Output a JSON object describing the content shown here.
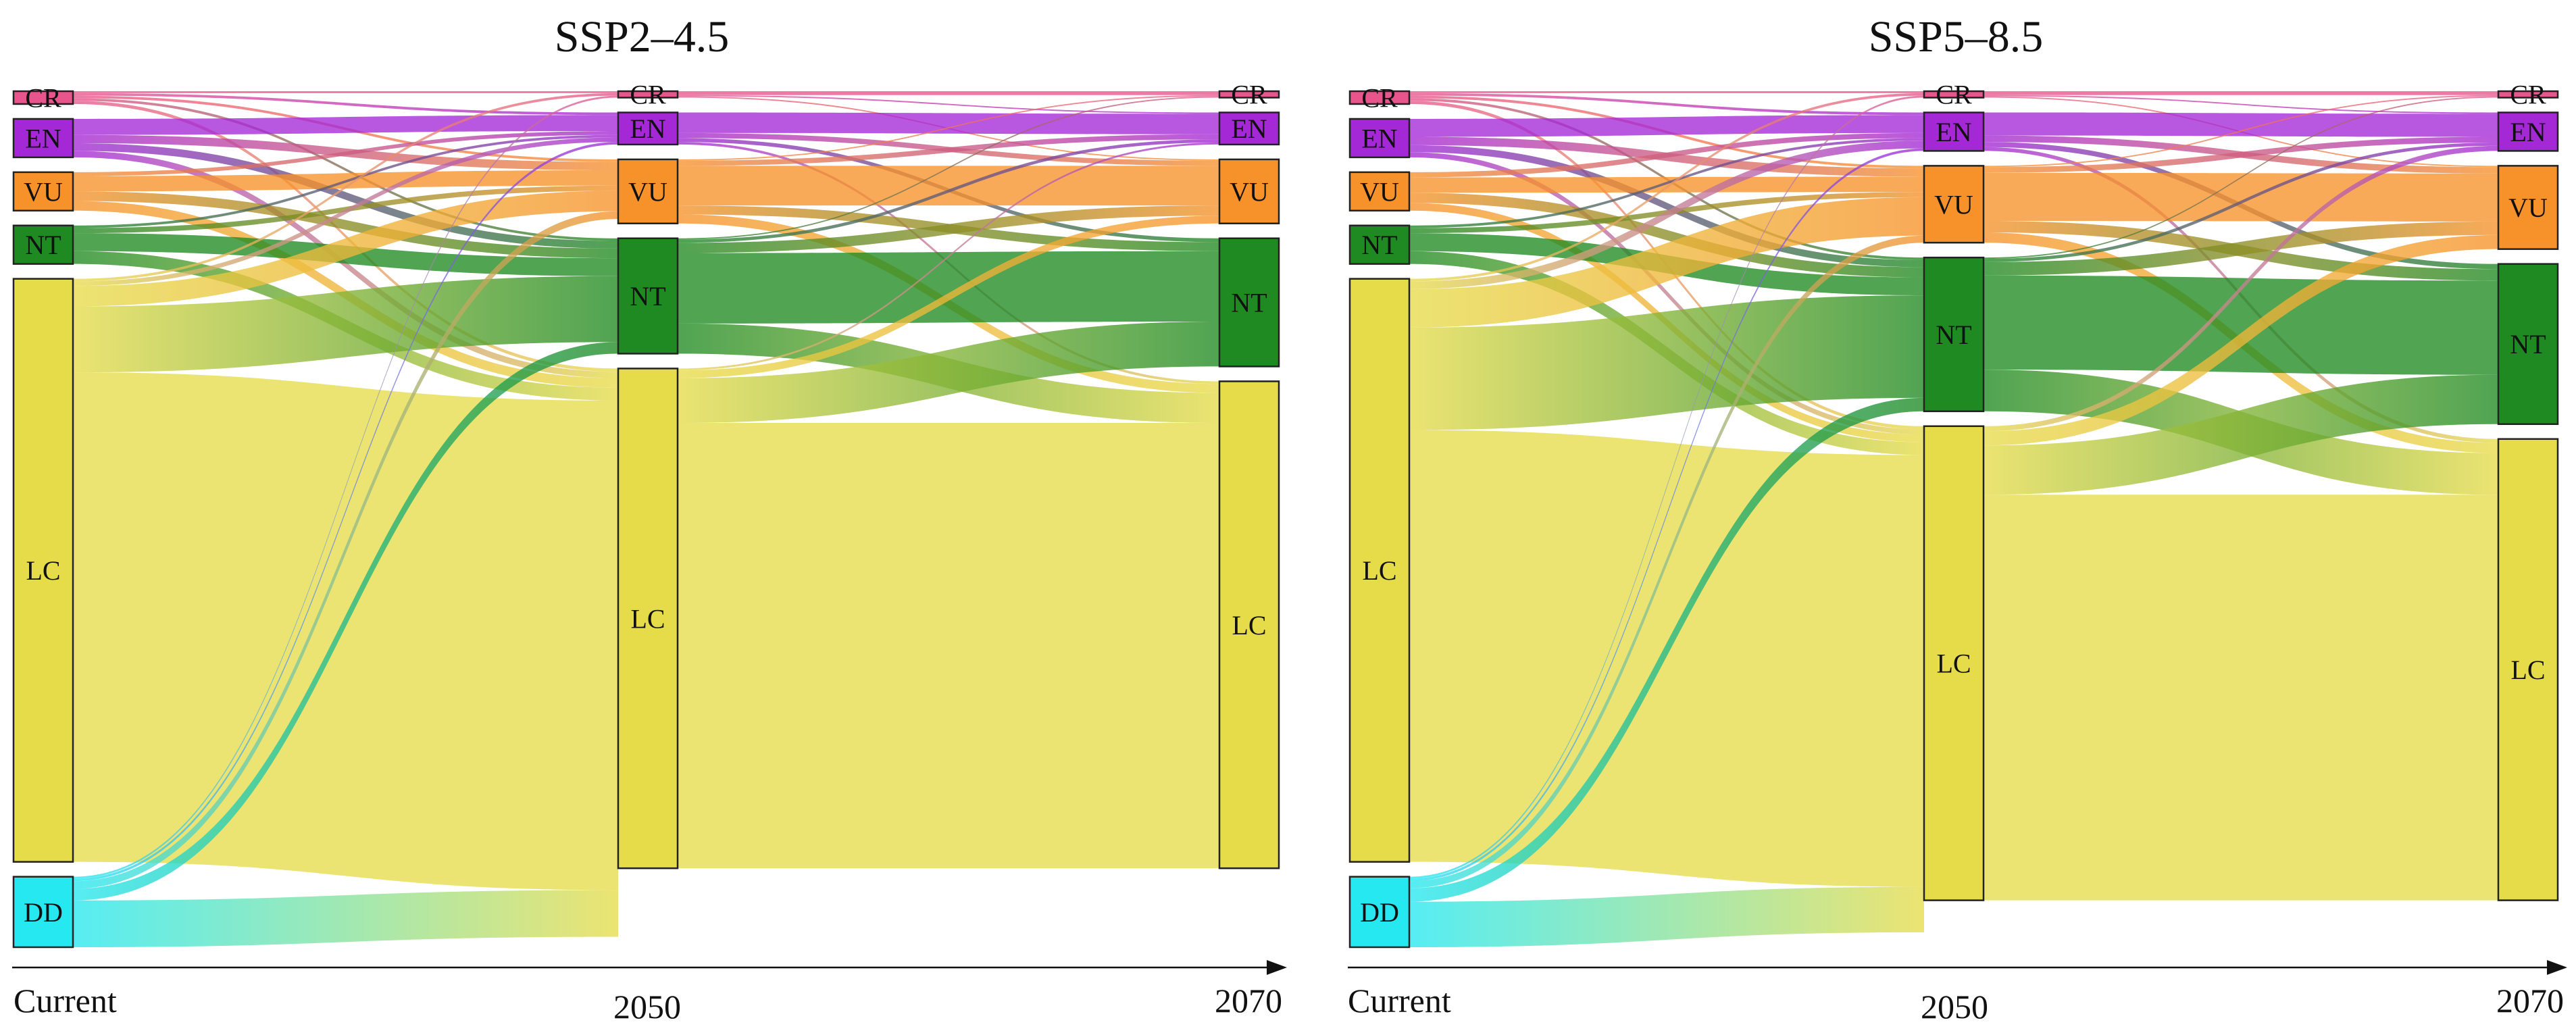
{
  "chart_data": [
    {
      "type": "sankey",
      "title": "SSP2–4.5",
      "time_points": [
        "Current",
        "2050",
        "2070"
      ],
      "categories": [
        "CR",
        "EN",
        "VU",
        "NT",
        "LC",
        "DD"
      ],
      "colors": {
        "CR": "#e8558c",
        "EN": "#a428d6",
        "VU": "#f7922a",
        "NT": "#1f8a22",
        "LC": "#e6dc4a",
        "DD": "#26e8f0"
      },
      "nodes": [
        {
          "stage": "Current",
          "values": {
            "CR": 2,
            "EN": 6,
            "VU": 6,
            "NT": 6,
            "LC": 91,
            "DD": 11
          }
        },
        {
          "stage": "2050",
          "values": {
            "CR": 1,
            "EN": 5,
            "VU": 10,
            "NT": 18,
            "LC": 78
          }
        },
        {
          "stage": "2070",
          "values": {
            "CR": 1,
            "EN": 5,
            "VU": 10,
            "NT": 20,
            "LC": 76
          }
        }
      ],
      "flows": [
        {
          "from": "Current",
          "to": "2050",
          "links": [
            {
              "source": "CR",
              "target": "CR",
              "value": 0.3
            },
            {
              "source": "CR",
              "target": "EN",
              "value": 0.4
            },
            {
              "source": "CR",
              "target": "VU",
              "value": 0.4
            },
            {
              "source": "CR",
              "target": "NT",
              "value": 0.4
            },
            {
              "source": "CR",
              "target": "LC",
              "value": 0.5
            },
            {
              "source": "EN",
              "target": "EN",
              "value": 2.5
            },
            {
              "source": "EN",
              "target": "VU",
              "value": 1.3
            },
            {
              "source": "EN",
              "target": "NT",
              "value": 1.2
            },
            {
              "source": "EN",
              "target": "LC",
              "value": 1.0
            },
            {
              "source": "VU",
              "target": "EN",
              "value": 0.6
            },
            {
              "source": "VU",
              "target": "VU",
              "value": 2.4
            },
            {
              "source": "VU",
              "target": "NT",
              "value": 1.5
            },
            {
              "source": "VU",
              "target": "LC",
              "value": 1.5
            },
            {
              "source": "NT",
              "target": "EN",
              "value": 0.4
            },
            {
              "source": "NT",
              "target": "VU",
              "value": 0.8
            },
            {
              "source": "NT",
              "target": "NT",
              "value": 2.8
            },
            {
              "source": "NT",
              "target": "LC",
              "value": 2.0
            },
            {
              "source": "LC",
              "target": "CR",
              "value": 0.4
            },
            {
              "source": "LC",
              "target": "EN",
              "value": 0.7
            },
            {
              "source": "LC",
              "target": "VU",
              "value": 3.2
            },
            {
              "source": "LC",
              "target": "NT",
              "value": 10.3
            },
            {
              "source": "LC",
              "target": "LC",
              "value": 76.4
            },
            {
              "source": "DD",
              "target": "CR",
              "value": 0.3
            },
            {
              "source": "DD",
              "target": "EN",
              "value": 0.4
            },
            {
              "source": "DD",
              "target": "VU",
              "value": 1.2
            },
            {
              "source": "DD",
              "target": "NT",
              "value": 1.8
            },
            {
              "source": "DD",
              "target": "LC",
              "value": 7.3
            }
          ]
        },
        {
          "from": "2050",
          "to": "2070",
          "links": [
            {
              "source": "CR",
              "target": "CR",
              "value": 0.6
            },
            {
              "source": "CR",
              "target": "EN",
              "value": 0.2
            },
            {
              "source": "CR",
              "target": "VU",
              "value": 0.2
            },
            {
              "source": "EN",
              "target": "EN",
              "value": 3.2
            },
            {
              "source": "EN",
              "target": "VU",
              "value": 0.8
            },
            {
              "source": "EN",
              "target": "NT",
              "value": 0.6
            },
            {
              "source": "EN",
              "target": "LC",
              "value": 0.4
            },
            {
              "source": "VU",
              "target": "CR",
              "value": 0.2
            },
            {
              "source": "VU",
              "target": "EN",
              "value": 0.8
            },
            {
              "source": "VU",
              "target": "VU",
              "value": 6.2
            },
            {
              "source": "VU",
              "target": "NT",
              "value": 1.4
            },
            {
              "source": "VU",
              "target": "LC",
              "value": 1.4
            },
            {
              "source": "NT",
              "target": "CR",
              "value": 0.2
            },
            {
              "source": "NT",
              "target": "EN",
              "value": 0.5
            },
            {
              "source": "NT",
              "target": "VU",
              "value": 1.6
            },
            {
              "source": "NT",
              "target": "NT",
              "value": 11.0
            },
            {
              "source": "NT",
              "target": "LC",
              "value": 4.7
            },
            {
              "source": "LC",
              "target": "EN",
              "value": 0.3
            },
            {
              "source": "LC",
              "target": "VU",
              "value": 1.2
            },
            {
              "source": "LC",
              "target": "NT",
              "value": 7.0
            },
            {
              "source": "LC",
              "target": "LC",
              "value": 69.5
            }
          ]
        }
      ]
    },
    {
      "type": "sankey",
      "title": "SSP5–8.5",
      "time_points": [
        "Current",
        "2050",
        "2070"
      ],
      "categories": [
        "CR",
        "EN",
        "VU",
        "NT",
        "LC",
        "DD"
      ],
      "colors": {
        "CR": "#e8558c",
        "EN": "#a428d6",
        "VU": "#f7922a",
        "NT": "#1f8a22",
        "LC": "#e6dc4a",
        "DD": "#26e8f0"
      },
      "nodes": [
        {
          "stage": "Current",
          "values": {
            "CR": 2,
            "EN": 6,
            "VU": 6,
            "NT": 6,
            "LC": 91,
            "DD": 11
          }
        },
        {
          "stage": "2050",
          "values": {
            "CR": 1,
            "EN": 6,
            "VU": 12,
            "NT": 24,
            "LC": 74
          }
        },
        {
          "stage": "2070",
          "values": {
            "CR": 1,
            "EN": 6,
            "VU": 13,
            "NT": 25,
            "LC": 72
          }
        }
      ],
      "flows": [
        {
          "from": "Current",
          "to": "2050",
          "links": [
            {
              "source": "CR",
              "target": "CR",
              "value": 0.3
            },
            {
              "source": "CR",
              "target": "EN",
              "value": 0.4
            },
            {
              "source": "CR",
              "target": "VU",
              "value": 0.4
            },
            {
              "source": "CR",
              "target": "NT",
              "value": 0.4
            },
            {
              "source": "CR",
              "target": "LC",
              "value": 0.5
            },
            {
              "source": "EN",
              "target": "EN",
              "value": 2.8
            },
            {
              "source": "EN",
              "target": "VU",
              "value": 1.3
            },
            {
              "source": "EN",
              "target": "NT",
              "value": 1.1
            },
            {
              "source": "EN",
              "target": "LC",
              "value": 0.8
            },
            {
              "source": "VU",
              "target": "EN",
              "value": 0.8
            },
            {
              "source": "VU",
              "target": "VU",
              "value": 2.4
            },
            {
              "source": "VU",
              "target": "NT",
              "value": 1.6
            },
            {
              "source": "VU",
              "target": "LC",
              "value": 1.2
            },
            {
              "source": "NT",
              "target": "EN",
              "value": 0.4
            },
            {
              "source": "NT",
              "target": "VU",
              "value": 0.8
            },
            {
              "source": "NT",
              "target": "NT",
              "value": 2.8
            },
            {
              "source": "NT",
              "target": "LC",
              "value": 2.0
            },
            {
              "source": "LC",
              "target": "CR",
              "value": 0.4
            },
            {
              "source": "LC",
              "target": "EN",
              "value": 1.2
            },
            {
              "source": "LC",
              "target": "VU",
              "value": 6.0
            },
            {
              "source": "LC",
              "target": "NT",
              "value": 16.0
            },
            {
              "source": "LC",
              "target": "LC",
              "value": 67.4
            },
            {
              "source": "DD",
              "target": "CR",
              "value": 0.3
            },
            {
              "source": "DD",
              "target": "EN",
              "value": 0.4
            },
            {
              "source": "DD",
              "target": "VU",
              "value": 1.1
            },
            {
              "source": "DD",
              "target": "NT",
              "value": 2.1
            },
            {
              "source": "DD",
              "target": "LC",
              "value": 7.1
            }
          ]
        },
        {
          "from": "2050",
          "to": "2070",
          "links": [
            {
              "source": "CR",
              "target": "CR",
              "value": 0.6
            },
            {
              "source": "CR",
              "target": "EN",
              "value": 0.2
            },
            {
              "source": "CR",
              "target": "VU",
              "value": 0.2
            },
            {
              "source": "EN",
              "target": "EN",
              "value": 3.6
            },
            {
              "source": "EN",
              "target": "VU",
              "value": 1.0
            },
            {
              "source": "EN",
              "target": "NT",
              "value": 0.8
            },
            {
              "source": "EN",
              "target": "LC",
              "value": 0.6
            },
            {
              "source": "VU",
              "target": "CR",
              "value": 0.2
            },
            {
              "source": "VU",
              "target": "EN",
              "value": 0.9
            },
            {
              "source": "VU",
              "target": "VU",
              "value": 7.5
            },
            {
              "source": "VU",
              "target": "NT",
              "value": 1.8
            },
            {
              "source": "VU",
              "target": "LC",
              "value": 1.6
            },
            {
              "source": "NT",
              "target": "CR",
              "value": 0.2
            },
            {
              "source": "NT",
              "target": "EN",
              "value": 0.5
            },
            {
              "source": "NT",
              "target": "VU",
              "value": 2.1
            },
            {
              "source": "NT",
              "target": "NT",
              "value": 14.7
            },
            {
              "source": "NT",
              "target": "LC",
              "value": 6.5
            },
            {
              "source": "LC",
              "target": "EN",
              "value": 0.8
            },
            {
              "source": "LC",
              "target": "VU",
              "value": 2.2
            },
            {
              "source": "LC",
              "target": "NT",
              "value": 7.7
            },
            {
              "source": "LC",
              "target": "LC",
              "value": 63.3
            }
          ]
        }
      ]
    }
  ]
}
